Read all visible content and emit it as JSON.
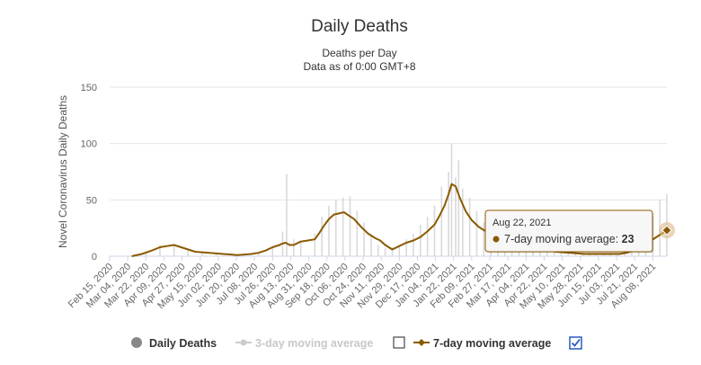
{
  "colors": {
    "daily": "#e6e6e6",
    "daily_legend": "#888888",
    "ma7": "#8b5a00",
    "ma3_off": "#cccccc",
    "grid": "#e6e6e6",
    "checkbox_on": "#2b59c3"
  },
  "chart_data": {
    "type": "bar",
    "title": "Daily Deaths",
    "subtitle_lines": [
      "Deaths per Day",
      "Data as of 0:00 GMT+8"
    ],
    "ylabel": "Novel Coronavirus Daily Deaths",
    "ylim": [
      0,
      150
    ],
    "yticks": [
      0,
      50,
      100,
      150
    ],
    "x_start": "Feb 15, 2020",
    "x_end": "Aug 22, 2021",
    "xtick_labels": [
      "Feb 15, 2020",
      "Mar 04, 2020",
      "Mar 22, 2020",
      "Apr 09, 2020",
      "Apr 27, 2020",
      "May 15, 2020",
      "Jun 02, 2020",
      "Jun 20, 2020",
      "Jul 08, 2020",
      "Jul 26, 2020",
      "Aug 13, 2020",
      "Aug 31, 2020",
      "Sep 18, 2020",
      "Oct 06, 2020",
      "Oct 24, 2020",
      "Nov 11, 2020",
      "Nov 29, 2020",
      "Dec 17, 2020",
      "Jan 04, 2021",
      "Jan 22, 2021",
      "Feb 09, 2021",
      "Feb 27, 2021",
      "Mar 17, 2021",
      "Apr 04, 2021",
      "Apr 22, 2021",
      "May 10, 2021",
      "May 28, 2021",
      "Jun 15, 2021",
      "Jul 03, 2021",
      "Jul 21, 2021",
      "Aug 08, 2021"
    ],
    "series": [
      {
        "name": "Daily Deaths",
        "kind": "bar",
        "dates": [
          "Mar 08, 2020",
          "Mar 22, 2020",
          "Apr 05, 2020",
          "Apr 19, 2020",
          "May 03, 2020",
          "May 17, 2020",
          "May 31, 2020",
          "Jun 14, 2020",
          "Jun 28, 2020",
          "Jul 12, 2020",
          "Jul 26, 2020",
          "Aug 05, 2020",
          "Aug 09, 2020",
          "Aug 16, 2020",
          "Aug 23, 2020",
          "Sep 06, 2020",
          "Sep 13, 2020",
          "Sep 20, 2020",
          "Sep 27, 2020",
          "Oct 04, 2020",
          "Oct 11, 2020",
          "Oct 18, 2020",
          "Oct 25, 2020",
          "Nov 01, 2020",
          "Nov 08, 2020",
          "Nov 15, 2020",
          "Nov 22, 2020",
          "Nov 29, 2020",
          "Dec 06, 2020",
          "Dec 13, 2020",
          "Dec 20, 2020",
          "Dec 27, 2020",
          "Jan 03, 2021",
          "Jan 10, 2021",
          "Jan 17, 2021",
          "Jan 20, 2021",
          "Jan 24, 2021",
          "Jan 27, 2021",
          "Jan 31, 2021",
          "Feb 07, 2021",
          "Feb 14, 2021",
          "Feb 21, 2021",
          "Feb 28, 2021",
          "Mar 07, 2021",
          "Mar 14, 2021",
          "Mar 21, 2021",
          "Mar 28, 2021",
          "Apr 04, 2021",
          "Apr 11, 2021",
          "Apr 18, 2021",
          "Apr 25, 2021",
          "May 02, 2021",
          "May 09, 2021",
          "May 16, 2021",
          "May 23, 2021",
          "May 30, 2021",
          "Jun 06, 2021",
          "Jun 13, 2021",
          "Jun 20, 2021",
          "Jun 27, 2021",
          "Jul 04, 2021",
          "Jul 11, 2021",
          "Jul 18, 2021",
          "Jul 25, 2021",
          "Aug 01, 2021",
          "Aug 08, 2021",
          "Aug 15, 2021",
          "Aug 22, 2021"
        ],
        "values": [
          0,
          3,
          10,
          9,
          5,
          3,
          2,
          1,
          2,
          3,
          8,
          22,
          73,
          15,
          13,
          20,
          35,
          45,
          50,
          52,
          53,
          40,
          30,
          18,
          10,
          7,
          8,
          10,
          15,
          20,
          28,
          35,
          45,
          62,
          75,
          100,
          70,
          85,
          60,
          52,
          40,
          30,
          22,
          18,
          15,
          12,
          10,
          8,
          6,
          5,
          4,
          4,
          3,
          3,
          3,
          3,
          2,
          2,
          2,
          2,
          2,
          3,
          5,
          10,
          20,
          35,
          50,
          55
        ]
      },
      {
        "name": "3-day moving average",
        "visible": false
      },
      {
        "name": "7-day moving average",
        "kind": "line",
        "dates": [
          "Mar 08, 2020",
          "Mar 18, 2020",
          "Mar 28, 2020",
          "Apr 05, 2020",
          "Apr 12, 2020",
          "Apr 19, 2020",
          "Apr 26, 2020",
          "May 03, 2020",
          "May 10, 2020",
          "May 24, 2020",
          "Jun 07, 2020",
          "Jun 21, 2020",
          "Jul 05, 2020",
          "Jul 12, 2020",
          "Jul 19, 2020",
          "Jul 26, 2020",
          "Aug 02, 2020",
          "Aug 04, 2020",
          "Aug 08, 2020",
          "Aug 12, 2020",
          "Aug 16, 2020",
          "Aug 23, 2020",
          "Aug 30, 2020",
          "Sep 06, 2020",
          "Sep 10, 2020",
          "Sep 15, 2020",
          "Sep 20, 2020",
          "Sep 25, 2020",
          "Sep 30, 2020",
          "Oct 05, 2020",
          "Oct 10, 2020",
          "Oct 15, 2020",
          "Oct 22, 2020",
          "Oct 29, 2020",
          "Nov 05, 2020",
          "Nov 10, 2020",
          "Nov 15, 2020",
          "Nov 22, 2020",
          "Nov 29, 2020",
          "Dec 06, 2020",
          "Dec 13, 2020",
          "Dec 20, 2020",
          "Dec 27, 2020",
          "Jan 03, 2021",
          "Jan 08, 2021",
          "Jan 13, 2021",
          "Jan 17, 2021",
          "Jan 20, 2021",
          "Jan 24, 2021",
          "Jan 28, 2021",
          "Feb 03, 2021",
          "Feb 09, 2021",
          "Feb 16, 2021",
          "Feb 23, 2021",
          "Mar 02, 2021",
          "Mar 09, 2021",
          "Mar 16, 2021",
          "Mar 23, 2021",
          "Mar 30, 2021",
          "Apr 06, 2021",
          "Apr 13, 2021",
          "Apr 20, 2021",
          "Apr 27, 2021",
          "May 04, 2021",
          "May 18, 2021",
          "Jun 01, 2021",
          "Jun 15, 2021",
          "Jun 29, 2021",
          "Jul 06, 2021",
          "Jul 13, 2021",
          "Jul 20, 2021",
          "Jul 27, 2021",
          "Aug 03, 2021",
          "Aug 10, 2021",
          "Aug 17, 2021",
          "Aug 22, 2021"
        ],
        "values": [
          0,
          2,
          5,
          8,
          9,
          10,
          8,
          6,
          4,
          3,
          2,
          1,
          2,
          3,
          5,
          8,
          10,
          11,
          12,
          10,
          10,
          13,
          14,
          15,
          20,
          27,
          33,
          37,
          38,
          39,
          36,
          33,
          26,
          20,
          16,
          14,
          10,
          6,
          9,
          12,
          14,
          17,
          22,
          28,
          36,
          45,
          55,
          64,
          62,
          52,
          40,
          32,
          26,
          22,
          18,
          14,
          12,
          10,
          9,
          8,
          7,
          6,
          5,
          4,
          3,
          2,
          2,
          2,
          2,
          3,
          5,
          8,
          12,
          16,
          20,
          23
        ]
      }
    ],
    "tooltip": {
      "date": "Aug 22, 2021",
      "series": "7-day moving average",
      "label": "7-day moving average: ",
      "value": "23"
    },
    "legend": [
      {
        "label": "Daily Deaths",
        "visible": true
      },
      {
        "label": "3-day moving average",
        "visible": false,
        "checked": false
      },
      {
        "label": "7-day moving average",
        "visible": true,
        "checked": true
      }
    ],
    "legend_position": "bottom-center",
    "grid": true
  }
}
